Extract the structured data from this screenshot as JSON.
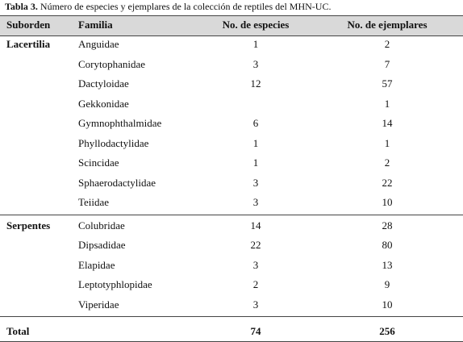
{
  "caption": {
    "label": "Tabla 3.",
    "text": "Número de especies y ejemplares de la colección de reptiles del MHN-UC."
  },
  "table": {
    "headers": [
      "Suborden",
      "Familia",
      "No. de especies",
      "No. de ejemplares"
    ],
    "groups": [
      {
        "suborden": "Lacertilia",
        "rows": [
          [
            "Anguidae",
            1,
            2
          ],
          [
            "Corytophanidae",
            3,
            7
          ],
          [
            "Dactyloidae",
            12,
            57
          ],
          [
            "Gekkonidae",
            null,
            1
          ],
          [
            "Gymnophthalmidae",
            6,
            14
          ],
          [
            "Phyllodactylidae",
            1,
            1
          ],
          [
            "Scincidae",
            1,
            2
          ],
          [
            "Sphaerodactylidae",
            3,
            22
          ],
          [
            "Teiidae",
            3,
            10
          ]
        ]
      },
      {
        "suborden": "Serpentes",
        "rows": [
          [
            "Colubridae",
            14,
            28
          ],
          [
            "Dipsadidae",
            22,
            80
          ],
          [
            "Elapidae",
            3,
            13
          ],
          [
            "Leptotyphlopidae",
            2,
            9
          ],
          [
            "Viperidae",
            3,
            10
          ]
        ]
      }
    ],
    "total": {
      "label": "Total",
      "especies": 74,
      "ejemplares": 256
    }
  }
}
